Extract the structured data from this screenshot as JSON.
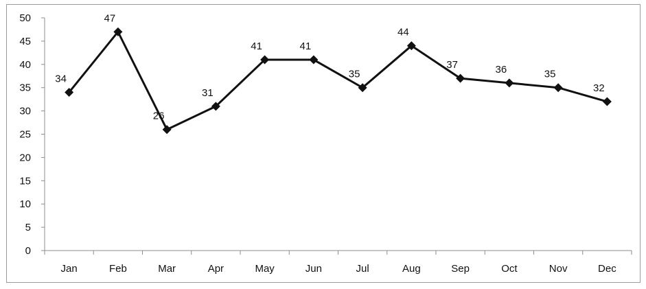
{
  "chart_data": {
    "type": "line",
    "title": "",
    "xlabel": "",
    "ylabel": "",
    "categories": [
      "Jan",
      "Feb",
      "Mar",
      "Apr",
      "May",
      "Jun",
      "Jul",
      "Aug",
      "Sep",
      "Oct",
      "Nov",
      "Dec"
    ],
    "series": [
      {
        "values": [
          34,
          47,
          26,
          31,
          41,
          41,
          35,
          44,
          37,
          36,
          35,
          32
        ]
      }
    ],
    "ylim": [
      0,
      50
    ],
    "yticks": [
      0,
      5,
      10,
      15,
      20,
      25,
      30,
      35,
      40,
      45,
      50
    ],
    "grid": false,
    "legend": "none",
    "marker": "diamond",
    "colors": {
      "line": "#111111",
      "axis": "#8c8c8c",
      "border": "#9a9a9a"
    }
  }
}
